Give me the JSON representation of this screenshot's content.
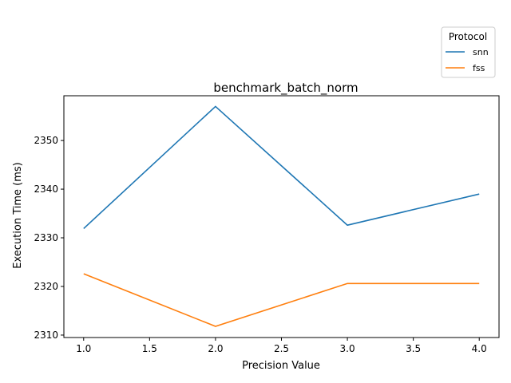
{
  "chart_data": {
    "type": "line",
    "title": "benchmark_batch_norm",
    "xlabel": "Precision Value",
    "ylabel": "Execution Time (ms)",
    "x": [
      1.0,
      2.0,
      3.0,
      4.0
    ],
    "xlim": [
      0.85,
      4.15
    ],
    "ylim": [
      2309.5,
      2359.2
    ],
    "xticks": [
      1.0,
      1.5,
      2.0,
      2.5,
      3.0,
      3.5,
      4.0
    ],
    "xtick_labels": [
      "1.0",
      "1.5",
      "2.0",
      "2.5",
      "3.0",
      "3.5",
      "4.0"
    ],
    "yticks": [
      2310,
      2320,
      2330,
      2340,
      2350
    ],
    "ytick_labels": [
      "2310",
      "2320",
      "2330",
      "2340",
      "2350"
    ],
    "grid": false,
    "legend": {
      "title": "Protocol",
      "placement": "outside top-right"
    },
    "series": [
      {
        "name": "snn",
        "color": "#1f77b4",
        "values": [
          2331.9,
          2357.0,
          2332.6,
          2339.0
        ]
      },
      {
        "name": "fss",
        "color": "#ff7f0e",
        "values": [
          2322.6,
          2311.8,
          2320.6,
          2320.6
        ]
      }
    ]
  }
}
